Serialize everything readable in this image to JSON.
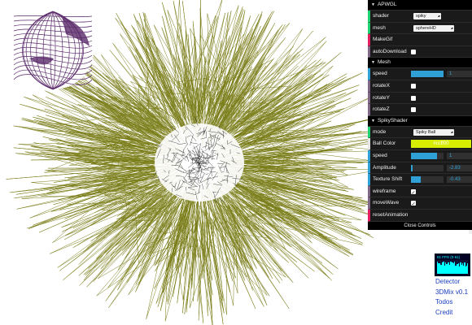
{
  "gui": {
    "folders": [
      {
        "title": "APWGL",
        "rows": [
          {
            "label": "shader",
            "type": "select",
            "value": "spiky"
          },
          {
            "label": "mesh",
            "type": "select",
            "value": "sphereHD"
          },
          {
            "label": "MakeGif",
            "type": "func"
          },
          {
            "label": "autoDownload",
            "type": "bool",
            "value": false
          }
        ]
      },
      {
        "title": "Mesh",
        "rows": [
          {
            "label": "speed",
            "type": "number",
            "value": "1",
            "fraction": 1.0
          },
          {
            "label": "rotateX",
            "type": "bool",
            "value": false
          },
          {
            "label": "rotateY",
            "type": "bool",
            "value": false
          },
          {
            "label": "rotateZ",
            "type": "bool",
            "value": false
          }
        ]
      },
      {
        "title": "SpikyShader",
        "rows": [
          {
            "label": "mode",
            "type": "select",
            "value": "Spiky Ball"
          },
          {
            "label": "Ball Color",
            "type": "color",
            "value": "#ccff00"
          },
          {
            "label": "speed",
            "type": "number",
            "value": "1",
            "fraction": 0.8
          },
          {
            "label": "Amplitude",
            "type": "number",
            "value": "-2.83",
            "fraction": 0.05
          },
          {
            "label": "Texture Shift",
            "type": "number",
            "value": "-0.43",
            "fraction": 0.3
          },
          {
            "label": "wireframe",
            "type": "bool",
            "value": true
          },
          {
            "label": "moveWave",
            "type": "bool",
            "value": true
          },
          {
            "label": "resetAnimation",
            "type": "func"
          }
        ]
      }
    ],
    "close_label": "Close Controls"
  },
  "stats": {
    "fps_label": "61 FPS (0-61)"
  },
  "links": [
    "Detector",
    "3DMix v0.1",
    "Todos",
    "Credit"
  ],
  "colors": {
    "wire": "#7a7d18",
    "mesh_center": "#ffffff",
    "thumb_purple": "#5a2a6a"
  }
}
